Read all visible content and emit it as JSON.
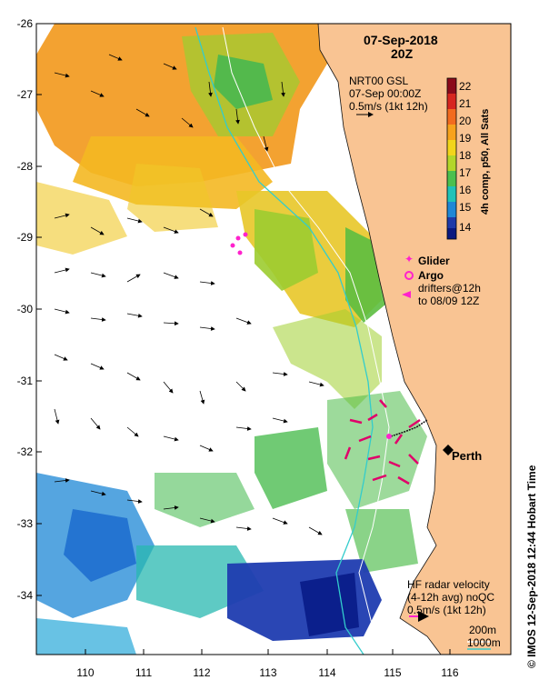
{
  "header": {
    "date": "07-Sep-2018",
    "time": "20Z"
  },
  "product": {
    "line1": "NRT00 GSL",
    "line2": "07-Sep 00:00Z",
    "line3": "0.5m/s (1kt 12h)"
  },
  "colorbar": {
    "title": "4h comp, p50, All Sats",
    "ticks": [
      "22",
      "21",
      "20",
      "19",
      "18",
      "17",
      "16",
      "15",
      "14"
    ],
    "colors": [
      "#8b0a1a",
      "#d7261f",
      "#f26b1f",
      "#f7a21c",
      "#f2d51b",
      "#b3d62a",
      "#4cc04f",
      "#20c2b8",
      "#1f87d6",
      "#1f3aa8",
      "#0b1a80"
    ]
  },
  "legend": {
    "glider": "Glider",
    "argo": "Argo",
    "drifters_line1": "drifters@12h",
    "drifters_line2": "to 08/09 12Z",
    "glider_color": "#ff22cc",
    "argo_color": "#ff22cc",
    "drifter_color": "#e0006a"
  },
  "hf_radar": {
    "line1": "HF radar velocity",
    "line2": "(4-12h avg) noQC",
    "line3": "0.5m/s (1kt 12h)",
    "arrow_color": "#ff22cc"
  },
  "isobaths": {
    "label1": "200m",
    "label2": "1000m",
    "color1": "#ffffff",
    "color2": "#33cccc"
  },
  "city": {
    "name": "Perth",
    "lon": 115.86,
    "lat": -31.95
  },
  "axes": {
    "yticks": [
      "-26",
      "-27",
      "-28",
      "-29",
      "-30",
      "-31",
      "-32",
      "-33",
      "-34"
    ],
    "xticks": [
      "110",
      "111",
      "112",
      "113",
      "114",
      "115",
      "116"
    ]
  },
  "footer": {
    "credit": "© IMOS 12-Sep-2018 12:44 Hobart Time"
  },
  "colors": {
    "land": "#f9c493",
    "ocean_nodata": "#ffffff"
  }
}
